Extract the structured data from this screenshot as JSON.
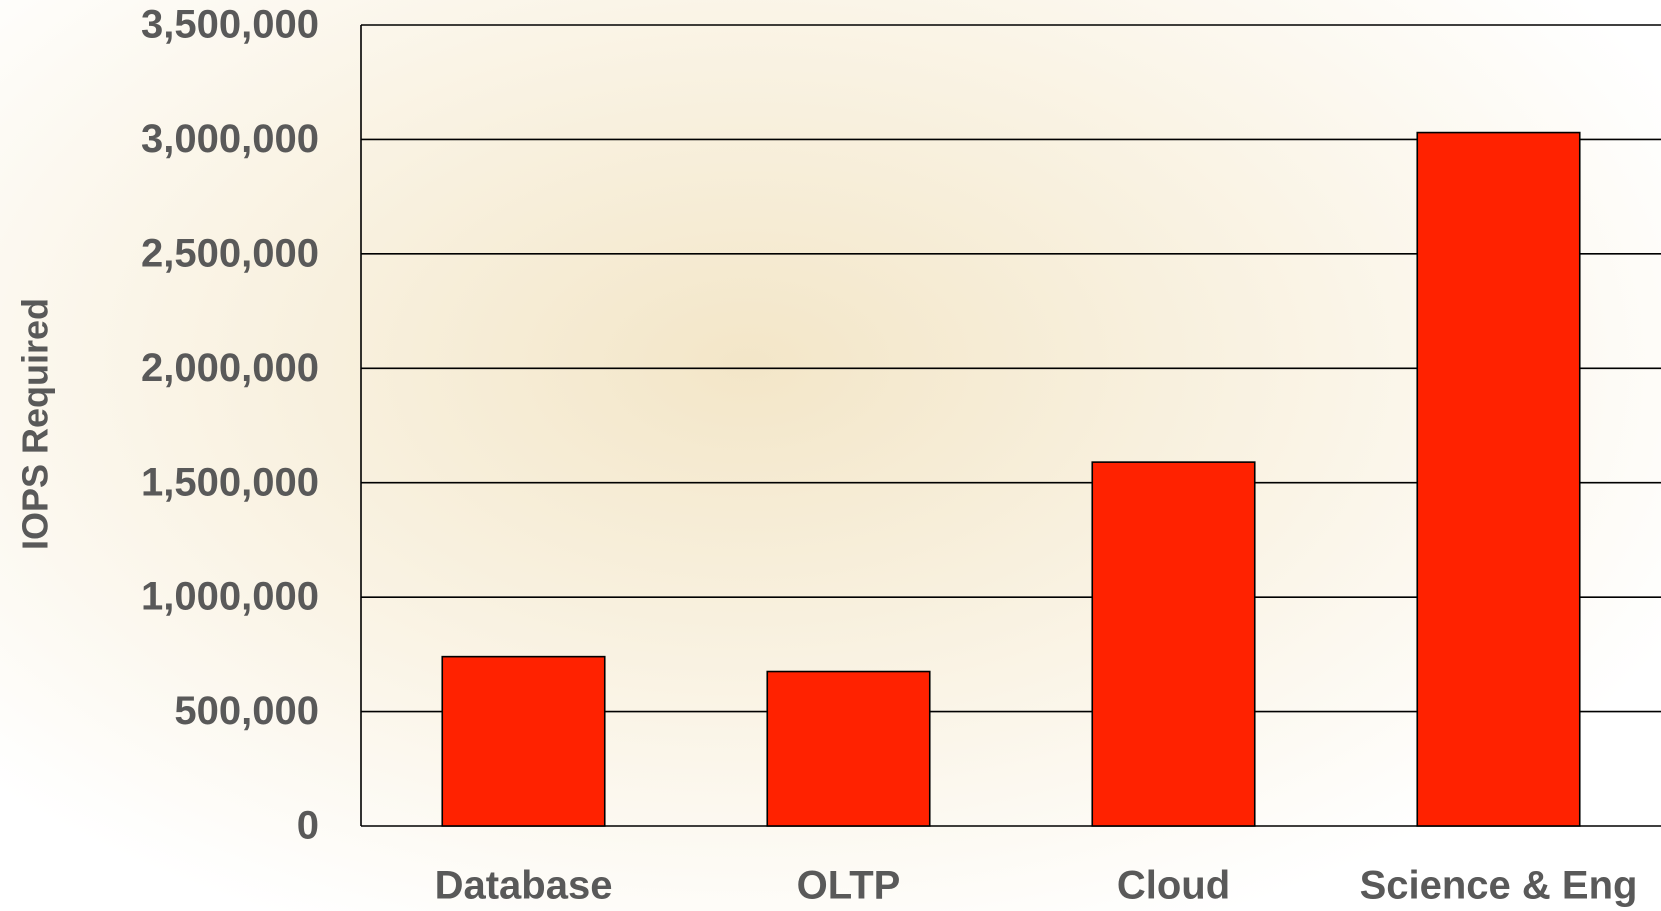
{
  "chart_data": {
    "type": "bar",
    "y_label": "IOPS Required",
    "categories": [
      "Database",
      "OLTP",
      "Cloud",
      "Science & Eng"
    ],
    "values": [
      740000,
      675000,
      1590000,
      3030000
    ],
    "color": "#ff2200",
    "ylim": [
      0,
      3500000
    ],
    "yticks": [
      0,
      {
        "value": 500000,
        "label": "500,000"
      },
      {
        "value": 1000000,
        "label": "1,000,000"
      },
      {
        "value": 1500000,
        "label": "1,500,000"
      },
      {
        "value": 2000000,
        "label": "2,000,000"
      },
      {
        "value": 2500000,
        "label": "2,500,000"
      },
      {
        "value": 3000000,
        "label": "3,000,000"
      },
      {
        "value": 3500000,
        "label": "3,500,000"
      }
    ],
    "grid": true
  }
}
